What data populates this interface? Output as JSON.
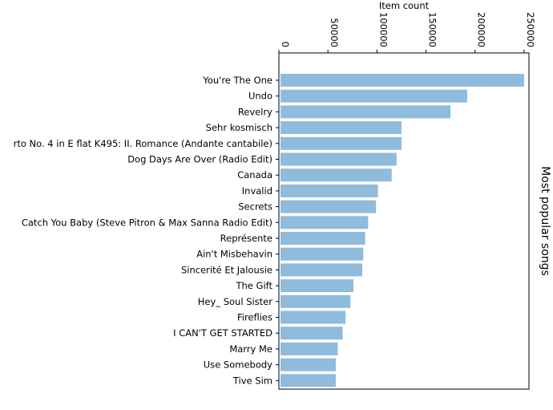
{
  "chart_data": {
    "type": "bar",
    "orientation": "horizontal",
    "title": "",
    "xlabel": "Item count",
    "ylabel": "Most popular songs",
    "x_axis_position": "top",
    "y_label_position": "right",
    "xlim": [
      0,
      255000
    ],
    "x_ticks": [
      0,
      50000,
      100000,
      150000,
      200000,
      250000
    ],
    "x_tick_labels": [
      "0",
      "50000",
      "100000",
      "150000",
      "200000",
      "250000"
    ],
    "grid": false,
    "bar_color": "#8fbbdc",
    "categories": [
      "You're The One",
      "Undo",
      "Revelry",
      "Sehr kosmisch",
      "rto No. 4 in E flat K495: II. Romance (Andante cantabile)",
      "Dog Days Are Over (Radio Edit)",
      "Canada",
      "Invalid",
      "Secrets",
      "Catch You Baby (Steve Pitron & Max Sanna Radio Edit)",
      "Représente",
      "Ain't Misbehavin",
      "Sincerité Et Jalousie",
      "The Gift",
      "Hey_ Soul Sister",
      "Fireflies",
      "I CAN'T GET STARTED",
      "Marry Me",
      "Use Somebody",
      "Tive Sim"
    ],
    "values": [
      250000,
      192000,
      175000,
      125000,
      125000,
      120000,
      115000,
      101000,
      99000,
      91000,
      88000,
      86000,
      85000,
      76000,
      73000,
      68000,
      65000,
      60000,
      58000,
      58000
    ]
  }
}
